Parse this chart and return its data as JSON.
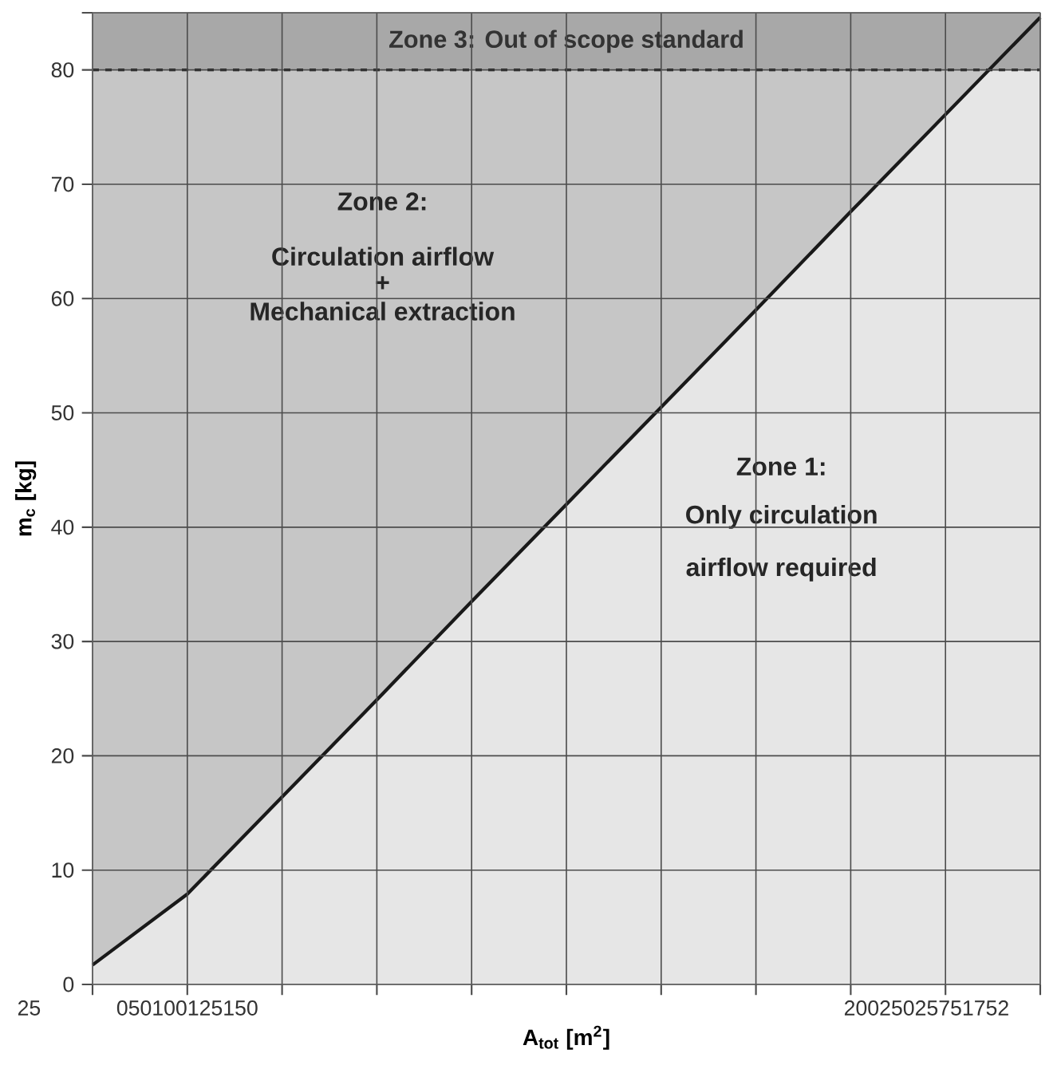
{
  "chart_data": {
    "type": "area",
    "xlabel": "A$_{tot}$ [m$^{2}$]",
    "ylabel": "m$_{c}$ [kg]",
    "categories": [
      null,
      null,
      null,
      null,
      null,
      null,
      null,
      null,
      null,
      null,
      null
    ],
    "ylim": [
      0,
      85
    ],
    "yticks": [
      0,
      10,
      20,
      30,
      40,
      50,
      60,
      70,
      80,
      {
        "value": 85,
        "label": null
      }
    ],
    "grid": true,
    "series": [
      {
        "color": "#e6e6e6",
        "values": [
          1.7,
          7.9,
          16.4,
          24.9,
          33.5,
          42.0,
          50.5,
          59.0,
          67.6,
          76.1,
          84.6
        ]
      }
    ],
    "bands": [
      {
        "axis": "y",
        "from": 0,
        "to": 80,
        "color": "#c6c6c6"
      },
      {
        "axis": "y",
        "from": 80,
        "to": 85,
        "color": "#a8a8a8",
        "label": "Zone 3: Out of scope standard"
      }
    ],
    "ref_lines": [
      {
        "axis": "y",
        "value": 80,
        "color": "#000000",
        "line_style": "dashed"
      }
    ],
    "annotations": [
      "25",
      "050100125150",
      "20025025751752",
      "Zone 2:",
      "Circulation airflow",
      "+",
      "Mechanical extraction",
      "Zone 1:",
      "Only circulation",
      "airflow required"
    ]
  }
}
